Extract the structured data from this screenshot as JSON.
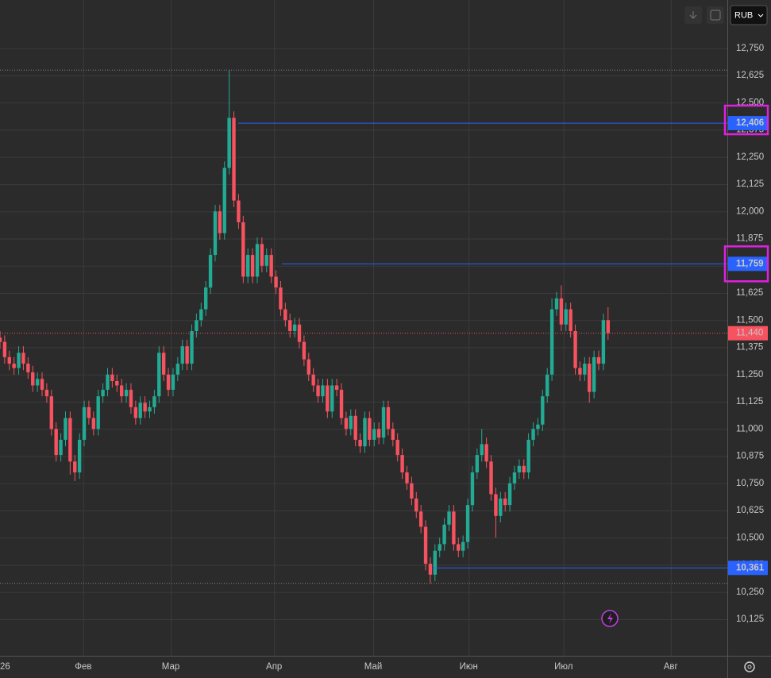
{
  "chart_data": {
    "type": "candlestick",
    "currency": "RUB",
    "up_color": "#22ab94",
    "down_color": "#f7525f",
    "open": [
      11420,
      11400,
      11330,
      11300,
      11280,
      11350,
      11300,
      11260,
      11200,
      11230,
      11180,
      11150,
      11000,
      10880,
      10950,
      11050,
      10850,
      10800,
      10950,
      11100,
      11050,
      11000,
      11150,
      11180,
      11250,
      11220,
      11200,
      11150,
      11180,
      11100,
      11050,
      11120,
      11080,
      11100,
      11150,
      11350,
      11250,
      11180,
      11250,
      11300,
      11380,
      11300,
      11450,
      11500,
      11550,
      11650,
      11800,
      12000,
      11900,
      12200,
      12430,
      12050,
      11950,
      11700,
      11800,
      11700,
      11850,
      11750,
      11800,
      11700,
      11650,
      11550,
      11500,
      11450,
      11480,
      11400,
      11320,
      11250,
      11200,
      11150,
      11200,
      11080,
      11200,
      11180,
      11050,
      11000,
      11060,
      10950,
      10920,
      11050,
      10950,
      11000,
      10960,
      11100,
      11000,
      10950,
      10880,
      10800,
      10750,
      10680,
      10620,
      10550,
      10380,
      10330,
      10440,
      10470,
      10560,
      10620,
      10470,
      10440,
      10480,
      10650,
      10800,
      10880,
      10930,
      10850,
      10700,
      10600,
      10680,
      10650,
      10750,
      10800,
      10830,
      10800,
      10950,
      11000,
      11020,
      11150,
      11250,
      11550,
      11600,
      11480,
      11550,
      11450,
      11280,
      11250,
      11300,
      11170,
      11330,
      11300,
      11500
    ],
    "high": [
      11450,
      11430,
      11360,
      11330,
      11380,
      11380,
      11330,
      11290,
      11260,
      11260,
      11210,
      11180,
      11030,
      10980,
      11080,
      11080,
      10880,
      10980,
      11130,
      11130,
      11080,
      11180,
      11210,
      11280,
      11280,
      11250,
      11230,
      11210,
      11210,
      11130,
      11150,
      11150,
      11130,
      11180,
      11380,
      11380,
      11280,
      11280,
      11330,
      11410,
      11410,
      11480,
      11530,
      11580,
      11680,
      11830,
      12030,
      12030,
      12230,
      12650,
      12460,
      12080,
      11980,
      11830,
      11830,
      11880,
      11880,
      11830,
      11830,
      11730,
      11680,
      11580,
      11530,
      11510,
      11510,
      11430,
      11350,
      11280,
      11230,
      11230,
      11230,
      11230,
      11230,
      11210,
      11080,
      11090,
      11090,
      10980,
      11080,
      11080,
      11030,
      11030,
      11130,
      11130,
      11030,
      10980,
      10910,
      10830,
      10780,
      10710,
      10650,
      10580,
      10410,
      10470,
      10500,
      10590,
      10650,
      10650,
      10500,
      10510,
      10680,
      10830,
      10910,
      11000,
      10960,
      10880,
      10730,
      10710,
      10710,
      10780,
      10830,
      10860,
      10860,
      10980,
      11030,
      11050,
      11180,
      11280,
      11600,
      11630,
      11660,
      11580,
      11580,
      11480,
      11310,
      11330,
      11330,
      11360,
      11360,
      11530,
      11560
    ],
    "low": [
      11370,
      11300,
      11270,
      11250,
      11250,
      11270,
      11230,
      11170,
      11170,
      11150,
      11120,
      10970,
      10850,
      10850,
      10920,
      10790,
      10760,
      10770,
      10920,
      11020,
      10970,
      10970,
      11120,
      11150,
      11190,
      11170,
      11120,
      11120,
      11070,
      11020,
      11020,
      11050,
      11050,
      11070,
      11120,
      11220,
      11150,
      11150,
      11220,
      11270,
      11270,
      11270,
      11420,
      11470,
      11520,
      11620,
      11770,
      11870,
      11870,
      12170,
      12020,
      11920,
      11670,
      11670,
      11670,
      11670,
      11720,
      11720,
      11670,
      11620,
      11520,
      11470,
      11420,
      11420,
      11370,
      11290,
      11220,
      11170,
      11120,
      11120,
      11050,
      11050,
      11150,
      11020,
      10970,
      10970,
      10920,
      10890,
      10890,
      10920,
      10920,
      10930,
      10930,
      10970,
      10920,
      10850,
      10770,
      10720,
      10650,
      10590,
      10520,
      10350,
      10290,
      10300,
      10410,
      10440,
      10530,
      10440,
      10410,
      10410,
      10450,
      10620,
      10770,
      10850,
      10820,
      10670,
      10500,
      10570,
      10620,
      10620,
      10720,
      10770,
      10770,
      10770,
      10920,
      10970,
      10990,
      11120,
      11220,
      11520,
      11450,
      11450,
      11420,
      11250,
      11220,
      11220,
      11120,
      11140,
      11270,
      11270,
      11410
    ],
    "close": [
      11400,
      11330,
      11300,
      11280,
      11350,
      11300,
      11260,
      11200,
      11230,
      11180,
      11150,
      11000,
      10880,
      10950,
      11050,
      10850,
      10800,
      10950,
      11100,
      11050,
      11000,
      11150,
      11180,
      11250,
      11220,
      11200,
      11150,
      11180,
      11100,
      11050,
      11120,
      11080,
      11100,
      11150,
      11350,
      11250,
      11180,
      11250,
      11300,
      11380,
      11300,
      11450,
      11500,
      11550,
      11650,
      11800,
      12000,
      11900,
      12200,
      12430,
      12050,
      11950,
      11700,
      11800,
      11700,
      11850,
      11750,
      11800,
      11700,
      11650,
      11550,
      11500,
      11450,
      11480,
      11400,
      11320,
      11250,
      11200,
      11150,
      11200,
      11080,
      11200,
      11180,
      11050,
      11000,
      11060,
      10950,
      10920,
      11050,
      10950,
      11000,
      10960,
      11100,
      11000,
      10950,
      10880,
      10800,
      10750,
      10680,
      10620,
      10550,
      10380,
      10330,
      10440,
      10470,
      10560,
      10620,
      10470,
      10440,
      10480,
      10650,
      10800,
      10880,
      10930,
      10850,
      10700,
      10600,
      10680,
      10650,
      10750,
      10800,
      10830,
      10800,
      10950,
      11000,
      11020,
      11150,
      11250,
      11550,
      11600,
      11480,
      11550,
      11450,
      11280,
      11250,
      11300,
      11170,
      11330,
      11300,
      11500,
      11440
    ],
    "xlim": [
      0,
      155.5
    ],
    "xticks": [
      {
        "value": 0,
        "label": "26"
      },
      {
        "value": 17.8,
        "label": "Фев"
      },
      {
        "value": 36.5,
        "label": "Мар"
      },
      {
        "value": 58.6,
        "label": "Апр"
      },
      {
        "value": 79.8,
        "label": "Май"
      },
      {
        "value": 100.2,
        "label": "Июн"
      },
      {
        "value": 120.5,
        "label": "Июл"
      },
      {
        "value": 143.4,
        "label": "Авг"
      }
    ],
    "ylim": [
      9957,
      12972
    ],
    "yticks": [
      {
        "value": 10125,
        "label": "10,125"
      },
      {
        "value": 10250,
        "label": "10,250"
      },
      {
        "value": 10375,
        "label": "10,375"
      },
      {
        "value": 10500,
        "label": "10,500"
      },
      {
        "value": 10625,
        "label": "10,625"
      },
      {
        "value": 10750,
        "label": "10,750"
      },
      {
        "value": 10875,
        "label": "10,875"
      },
      {
        "value": 11000,
        "label": "11,000"
      },
      {
        "value": 11125,
        "label": "11,125"
      },
      {
        "value": 11250,
        "label": "11,250"
      },
      {
        "value": 11375,
        "label": "11,375"
      },
      {
        "value": 11500,
        "label": "11,500"
      },
      {
        "value": 11625,
        "label": "11,625"
      },
      {
        "value": 11750,
        "label": "11,750"
      },
      {
        "value": 11875,
        "label": "11,875"
      },
      {
        "value": 12000,
        "label": "12,000"
      },
      {
        "value": 12125,
        "label": "12,125"
      },
      {
        "value": 12250,
        "label": "12,250"
      },
      {
        "value": 12375,
        "label": "12,375"
      },
      {
        "value": 12500,
        "label": "12,500"
      },
      {
        "value": 12625,
        "label": "12,625"
      },
      {
        "value": 12750,
        "label": "12,750"
      }
    ],
    "grid": true,
    "price_lines": [
      {
        "value": 12406,
        "label": "12,406",
        "highlighted": true
      },
      {
        "value": 11759,
        "label": "11,759",
        "highlighted": true
      },
      {
        "value": 10361,
        "label": "10,361",
        "highlighted": false
      }
    ],
    "price_line_color": "#2962ff",
    "last_price": {
      "value": 11440,
      "label": "11,440"
    }
  }
}
